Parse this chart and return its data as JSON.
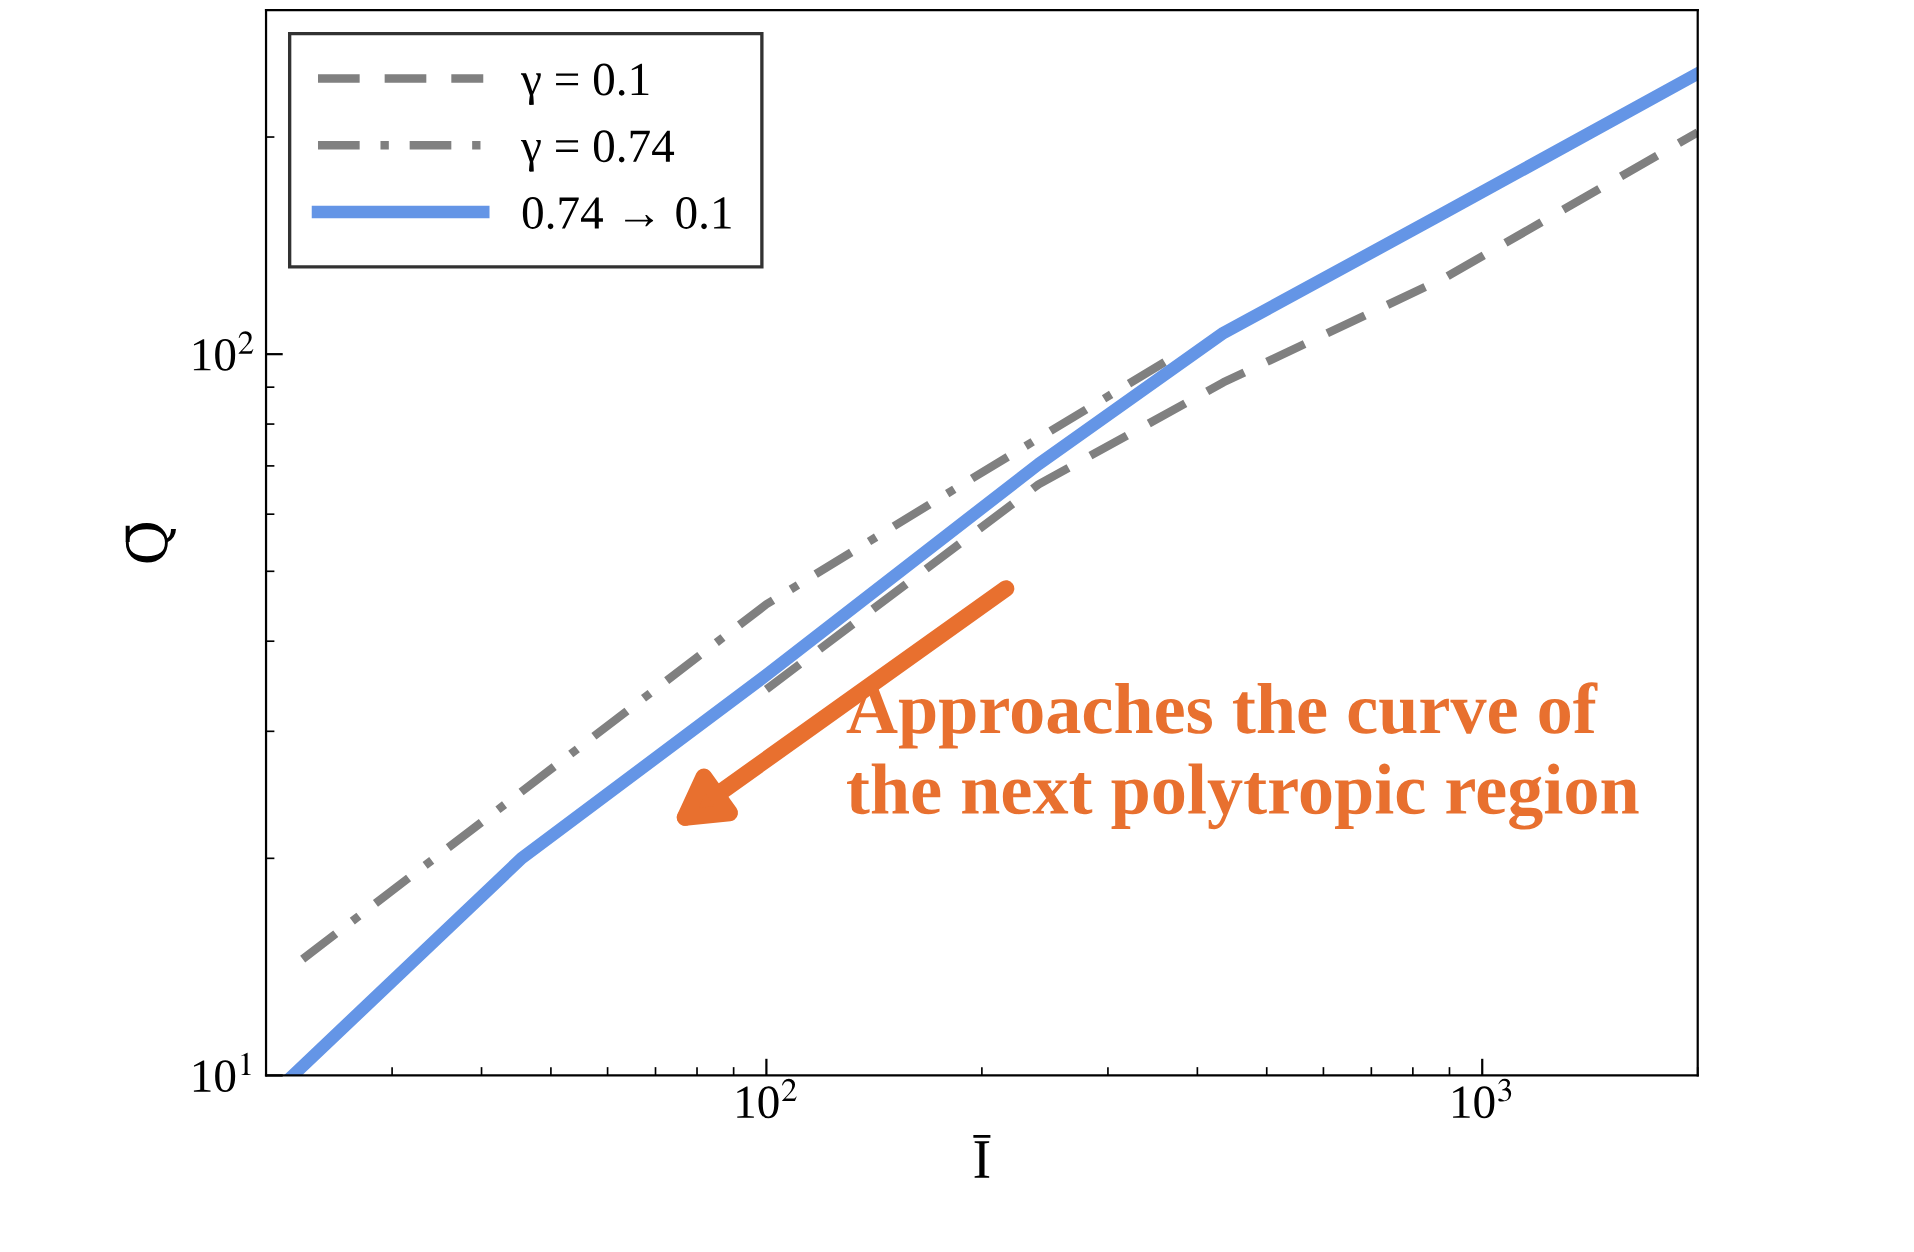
{
  "chart_data": {
    "type": "line",
    "xlabel": "Ī",
    "ylabel": "Q̄",
    "log": "xy",
    "xlim": [
      20,
      2000
    ],
    "ylim": [
      10,
      300
    ],
    "xticks": [
      {
        "value": 100,
        "label": "10$^{2}$"
      },
      {
        "value": 1000,
        "label": "10$^{3}$"
      }
    ],
    "yticks": [
      {
        "value": 10,
        "label": "10$^{1}$"
      },
      {
        "value": 100,
        "label": "10$^{2}$"
      }
    ],
    "legend": "top left",
    "grid": false,
    "series": [
      {
        "name": "γ = 0.1",
        "color": "#808080",
        "line_style": "dashed",
        "x": [
          100,
          240,
          435,
          885,
          2000
        ],
        "values": [
          34.3,
          66,
          91.4,
          127.5,
          203
        ]
      },
      {
        "name": "γ = 0.74",
        "color": "#808080",
        "line_style": "dashdot",
        "x": [
          22.5,
          100,
          194,
          360
        ],
        "values": [
          14.5,
          45,
          67.3,
          97.5
        ]
      },
      {
        "name": "0.74 → 0.1",
        "color": "#6495e6",
        "line_style": "solid",
        "x": [
          21.8,
          45.5,
          100,
          240,
          435,
          885,
          2000
        ],
        "values": [
          10,
          20,
          35.9,
          70.4,
          107,
          157,
          245
        ]
      }
    ],
    "annotations": [
      "Approaches the curve of\nthe next polytropic region"
    ]
  }
}
